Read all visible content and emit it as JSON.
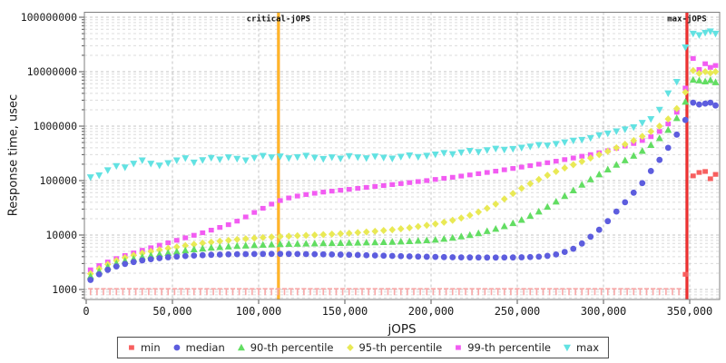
{
  "chart_data": {
    "type": "scatter",
    "title": "",
    "xlabel": "jOPS",
    "ylabel": "Response time, usec",
    "grid": true,
    "x_axis": {
      "min": -1000,
      "max": 367000,
      "ticks": [
        0,
        50000,
        100000,
        150000,
        200000,
        250000,
        300000,
        350000
      ],
      "tick_labels": [
        "0",
        "50,000",
        "100,000",
        "150,000",
        "200,000",
        "250,000",
        "300,000",
        "350,000"
      ]
    },
    "y_axis": {
      "scale": "log",
      "min": 660,
      "max": 123000000,
      "decades": [
        1000,
        10000,
        100000,
        1000000,
        10000000,
        100000000
      ],
      "tick_labels": [
        "1000",
        "10000",
        "100000",
        "1000000",
        "10000000",
        "100000000"
      ]
    },
    "reference_lines": [
      {
        "id": "critical-jops",
        "label": "critical-jOPS",
        "x": 111500,
        "color": "#ff9900",
        "core_color": "#ffd24d"
      },
      {
        "id": "max-jops",
        "label": "max-jOPS",
        "x": 348400,
        "color": "#dd0000",
        "core_color": "#ff6060"
      }
    ],
    "x_jops": [
      2500,
      7500,
      12500,
      17500,
      22500,
      27500,
      32500,
      37500,
      42500,
      47500,
      52500,
      57500,
      62500,
      67500,
      72500,
      77500,
      82500,
      87500,
      92500,
      97500,
      102500,
      107500,
      112500,
      117500,
      122500,
      127500,
      132500,
      137500,
      142500,
      147500,
      152500,
      157500,
      162500,
      167500,
      172500,
      177500,
      182500,
      187500,
      192500,
      197500,
      202500,
      207500,
      212500,
      217500,
      222500,
      227500,
      232500,
      237500,
      242500,
      247500,
      252500,
      257500,
      262500,
      267500,
      272500,
      277500,
      282500,
      287500,
      292500,
      297500,
      302500,
      307500,
      312500,
      317500,
      322500,
      327500,
      332500,
      337500,
      342500,
      347500,
      352000,
      355500,
      359000,
      362000,
      365000
    ],
    "series": [
      {
        "name": "max",
        "label": "max",
        "marker": "triangle-down",
        "color": "#62e2e2",
        "y": [
          115000,
          125000,
          155000,
          185000,
          175000,
          205000,
          235000,
          205000,
          190000,
          210000,
          235000,
          258000,
          215000,
          238000,
          262000,
          245000,
          268000,
          252000,
          235000,
          262000,
          285000,
          268000,
          278000,
          258000,
          270000,
          286000,
          264000,
          250000,
          268000,
          254000,
          283000,
          268000,
          258000,
          278000,
          264000,
          254000,
          274000,
          290000,
          272000,
          286000,
          302000,
          322000,
          306000,
          330000,
          352000,
          336000,
          362000,
          386000,
          370000,
          382000,
          402000,
          422000,
          452000,
          442000,
          472000,
          505000,
          542000,
          562000,
          605000,
          682000,
          735000,
          805000,
          872000,
          955000,
          1150000,
          1350000,
          2000000,
          4000000,
          6500000,
          28000000,
          50000000,
          47000000,
          52000000,
          55000000,
          50000000
        ]
      },
      {
        "name": "min",
        "label": "min",
        "marker": "square",
        "color": "#f75f5f",
        "tee_color": "#f8a8a8",
        "flat_run": {
          "x_from": 2500,
          "x_to": 346250,
          "step": 3750,
          "value": 1030,
          "marker": "tee"
        },
        "points": [
          [
            347500,
            1900
          ],
          [
            352000,
            122000
          ],
          [
            355500,
            141000
          ],
          [
            359000,
            147000
          ],
          [
            362000,
            108000
          ],
          [
            365000,
            130000
          ]
        ]
      },
      {
        "name": "p99",
        "label": "99-th percentile",
        "marker": "square",
        "color": "#f25cf2",
        "y": [
          2300,
          2750,
          3200,
          3700,
          4200,
          4700,
          5250,
          5850,
          6500,
          7200,
          8000,
          8900,
          9900,
          11000,
          12300,
          13800,
          15500,
          18000,
          21500,
          26000,
          31000,
          37000,
          43000,
          48000,
          52000,
          55500,
          58500,
          61500,
          64000,
          66500,
          69000,
          72000,
          75000,
          78000,
          81000,
          84500,
          88000,
          92000,
          96000,
          100000,
          105000,
          110000,
          115000,
          121000,
          127000,
          134000,
          141000,
          149000,
          158000,
          167000,
          177000,
          188000,
          200000,
          213000,
          227000,
          243000,
          260000,
          280000,
          300000,
          325000,
          355000,
          390000,
          430000,
          480000,
          545000,
          640000,
          800000,
          1100000,
          1800000,
          5000000,
          17500000,
          11000000,
          14000000,
          12000000,
          13000000
        ]
      },
      {
        "name": "p95",
        "label": "95-th percentile",
        "marker": "diamond",
        "color": "#e9e955",
        "y": [
          1950,
          2400,
          2900,
          3400,
          3850,
          4250,
          4650,
          5000,
          5350,
          5700,
          6050,
          6400,
          6750,
          7100,
          7400,
          7700,
          8000,
          8300,
          8550,
          8800,
          9000,
          9200,
          9400,
          9550,
          9700,
          9850,
          10000,
          10200,
          10400,
          10600,
          10800,
          11100,
          11400,
          11700,
          12100,
          12500,
          13000,
          13600,
          14300,
          15100,
          16000,
          17200,
          18700,
          20500,
          23000,
          26500,
          31000,
          37000,
          46000,
          58000,
          72000,
          88000,
          105000,
          125000,
          147000,
          170000,
          196000,
          225000,
          260000,
          300000,
          345000,
          400000,
          465000,
          545000,
          650000,
          800000,
          1000000,
          1350000,
          2100000,
          4200000,
          10500000,
          9300000,
          10000000,
          9500000,
          10000000
        ]
      },
      {
        "name": "p90",
        "label": "90-th percentile",
        "marker": "triangle-up",
        "color": "#62dd62",
        "y": [
          1750,
          2150,
          2600,
          3000,
          3350,
          3650,
          3950,
          4200,
          4450,
          4700,
          4950,
          5200,
          5450,
          5650,
          5850,
          6000,
          6150,
          6300,
          6400,
          6500,
          6600,
          6700,
          6800,
          6850,
          6900,
          6950,
          7000,
          7050,
          7100,
          7150,
          7200,
          7250,
          7300,
          7350,
          7400,
          7500,
          7600,
          7700,
          7850,
          8000,
          8200,
          8500,
          8900,
          9400,
          10000,
          10800,
          11800,
          13000,
          14500,
          16500,
          19000,
          22500,
          27000,
          33000,
          41000,
          52000,
          66000,
          84000,
          105000,
          130000,
          160000,
          195000,
          235000,
          285000,
          350000,
          450000,
          600000,
          850000,
          1400000,
          2800000,
          7100000,
          6900000,
          6600000,
          7000000,
          6400000
        ]
      },
      {
        "name": "median",
        "label": "median",
        "marker": "circle",
        "color": "#5d5dde",
        "y": [
          1500,
          1900,
          2300,
          2650,
          2950,
          3200,
          3420,
          3600,
          3760,
          3900,
          4020,
          4120,
          4200,
          4270,
          4330,
          4380,
          4420,
          4450,
          4470,
          4490,
          4500,
          4510,
          4510,
          4500,
          4490,
          4470,
          4450,
          4430,
          4400,
          4370,
          4340,
          4300,
          4260,
          4220,
          4180,
          4140,
          4100,
          4060,
          4020,
          3990,
          3960,
          3930,
          3910,
          3890,
          3880,
          3870,
          3860,
          3860,
          3870,
          3880,
          3900,
          3940,
          4000,
          4150,
          4400,
          4900,
          5600,
          7000,
          9300,
          12500,
          18000,
          27000,
          40000,
          60000,
          90000,
          150000,
          240000,
          400000,
          700000,
          1300000,
          2700000,
          2500000,
          2600000,
          2700000,
          2400000
        ]
      }
    ],
    "legend": {
      "position": "bottom-center",
      "items": [
        {
          "label": "min",
          "marker": "square",
          "color": "#f75f5f"
        },
        {
          "label": "median",
          "marker": "circle",
          "color": "#5d5dde"
        },
        {
          "label": "90-th percentile",
          "marker": "triangle-up",
          "color": "#62dd62"
        },
        {
          "label": "95-th percentile",
          "marker": "diamond",
          "color": "#e9e955"
        },
        {
          "label": "99-th percentile",
          "marker": "square",
          "color": "#f25cf2"
        },
        {
          "label": "max",
          "marker": "triangle-down",
          "color": "#62e2e2"
        }
      ]
    },
    "style": {
      "plot_border": "#7f7f7f",
      "grid_major": "#c6c6c6",
      "grid_minor": "#dcdcdc",
      "tick_label_color": "#1a1a1a"
    }
  }
}
